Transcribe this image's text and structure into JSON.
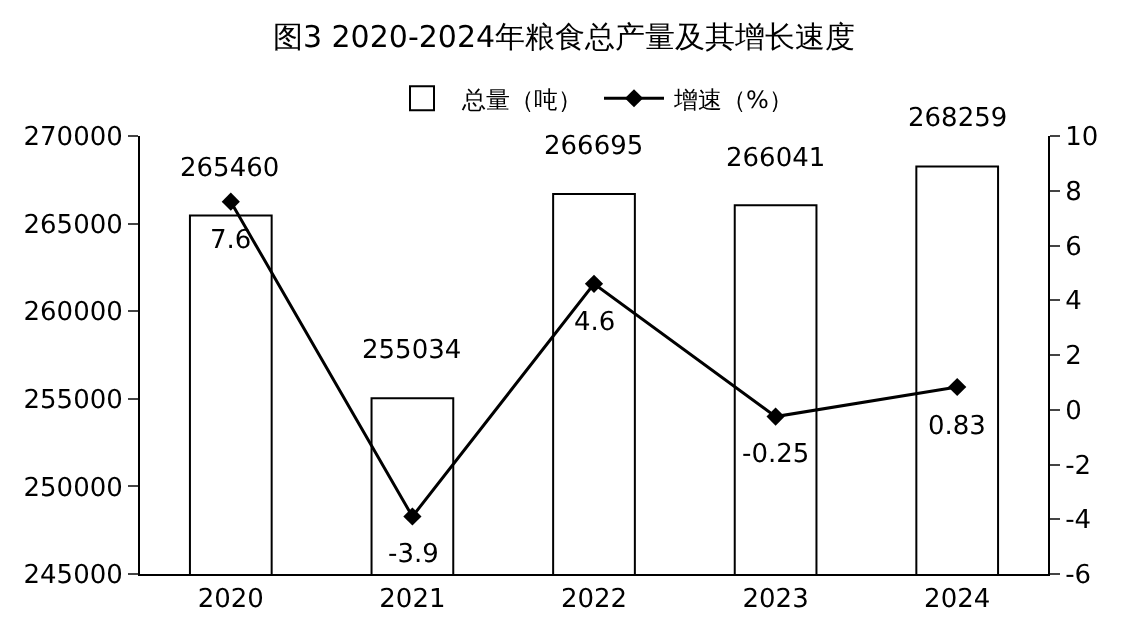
{
  "chart_data": {
    "type": "bar",
    "title": "图3 2020-2024年粮食总产量及其增长速度",
    "categories": [
      "2020",
      "2021",
      "2022",
      "2023",
      "2024"
    ],
    "series": [
      {
        "name": "总量（吨）",
        "color": "#ffffff",
        "values": [
          265460,
          255034,
          266695,
          266041,
          268259
        ]
      },
      {
        "name": "增速（%）",
        "type": "line",
        "axis": "y2",
        "color": "#000000",
        "marker": "diamond",
        "values": [
          7.6,
          -3.9,
          4.6,
          -0.25,
          0.83
        ]
      }
    ],
    "ylim": [
      245000,
      270000
    ],
    "yticks": [
      245000,
      250000,
      255000,
      260000,
      265000,
      270000
    ],
    "y2lim": [
      -6,
      10
    ],
    "y2ticks": [
      -6,
      -4,
      -2,
      0,
      2,
      4,
      6,
      8,
      10
    ],
    "data_labels": true,
    "legend": "top"
  }
}
